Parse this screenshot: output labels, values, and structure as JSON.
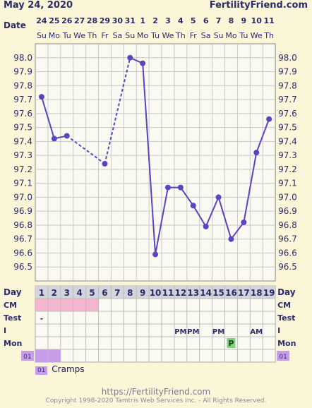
{
  "header": {
    "date": "May 24, 2020",
    "site": "FertilityFriend.com"
  },
  "colors": {
    "line": "#5a44c0",
    "grid": "#c8c8c8",
    "cm_fill": "#f4b6cc",
    "mon_fill": "#7ed07e",
    "note_fill": "#c79ce8",
    "header_row": "#d4d4dc",
    "panel": "#fbfaf2"
  },
  "chart_data": {
    "type": "line",
    "title": "",
    "xlabel": "Date",
    "ylabel": "",
    "ylim": [
      96.4,
      98.1
    ],
    "yticks": [
      "98.0",
      "97.9",
      "97.8",
      "97.7",
      "97.6",
      "97.5",
      "97.4",
      "97.3",
      "97.2",
      "97.1",
      "97.0",
      "96.9",
      "96.8",
      "96.7",
      "96.6",
      "96.5"
    ],
    "dates": [
      "24",
      "25",
      "26",
      "27",
      "28",
      "29",
      "30",
      "31",
      "1",
      "2",
      "3",
      "4",
      "5",
      "6",
      "7",
      "8",
      "9",
      "10",
      "11"
    ],
    "weekdays": [
      "Su",
      "Mo",
      "Tu",
      "We",
      "Th",
      "Fr",
      "Sa",
      "Su",
      "Mo",
      "Tu",
      "We",
      "Th",
      "Fr",
      "Sa",
      "Su",
      "Mo",
      "Tu",
      "We",
      "Th"
    ],
    "temps": [
      97.72,
      97.42,
      97.44,
      null,
      null,
      97.24,
      null,
      98.0,
      97.96,
      96.59,
      97.07,
      97.07,
      96.94,
      96.79,
      97.0,
      96.7,
      96.82,
      97.32,
      97.56
    ],
    "dashed_segments": [
      [
        2,
        5
      ],
      [
        5,
        7
      ]
    ],
    "cycle_days": [
      "1",
      "2",
      "3",
      "4",
      "5",
      "6",
      "7",
      "8",
      "9",
      "10",
      "11",
      "12",
      "13",
      "14",
      "15",
      "16",
      "17",
      "18",
      "19"
    ]
  },
  "rows": {
    "day_label": "Day",
    "cm_label": "CM",
    "test_label": "Test",
    "i_label": "I",
    "mon_label": "Mon",
    "note_code": "01",
    "cm_filled_days": [
      0,
      1,
      2,
      3,
      4
    ],
    "test_marks": [
      {
        "day": 0,
        "text": "-"
      }
    ],
    "i_marks": [
      {
        "day": 11,
        "text": "PM"
      },
      {
        "day": 12,
        "text": "PM"
      },
      {
        "day": 14,
        "text": "PM"
      },
      {
        "day": 17,
        "text": "AM"
      }
    ],
    "mon_marks": [
      {
        "day": 15,
        "text": "P"
      }
    ],
    "note_days": [
      0,
      1
    ]
  },
  "legend": {
    "code": "01",
    "text": "Cramps"
  },
  "footer": {
    "url": "https://FertilityFriend.com",
    "copyright": "Copyright 1998-2020 Tamtris Web Services Inc. - All Rights Reserved."
  }
}
